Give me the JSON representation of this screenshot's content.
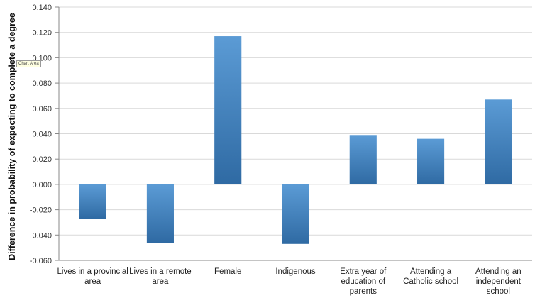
{
  "chart_data": {
    "type": "bar",
    "categories": [
      [
        "Lives in a provincial",
        "area"
      ],
      [
        "Lives in a remote",
        "area"
      ],
      [
        "Female"
      ],
      [
        "Indigenous"
      ],
      [
        "Extra year of",
        "education of",
        "parents"
      ],
      [
        "Attending a",
        "Catholic school"
      ],
      [
        "Attending an",
        "independent",
        "school"
      ]
    ],
    "values": [
      -0.027,
      -0.046,
      0.117,
      -0.047,
      0.039,
      0.036,
      0.067
    ],
    "ylabel": "Difference in probability of expecting to complete a degree",
    "xlabel": "",
    "ylim": [
      -0.06,
      0.14
    ],
    "yticks": [
      "0.140",
      "0.120",
      "0.100",
      "0.080",
      "0.060",
      "0.040",
      "0.020",
      "0.000",
      "-0.020",
      "-0.040",
      "-0.060"
    ],
    "grid": true,
    "legend": "none",
    "bar_color_top": "#5b9bd5",
    "bar_color_bottom": "#2f6aa3",
    "grid_color": "#d9d9d9"
  },
  "tooltip": "Chart Area"
}
